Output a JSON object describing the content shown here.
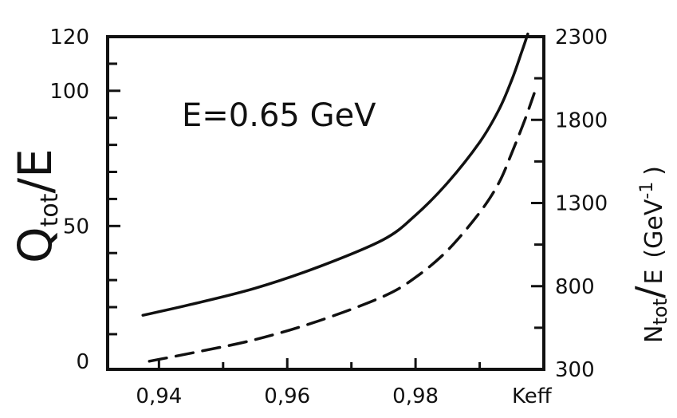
{
  "chart_data": {
    "type": "line",
    "annotation": "E=0.65 GeV",
    "x_axis": {
      "label": "Keff",
      "range": [
        0.932,
        1.0
      ],
      "ticks": [
        {
          "value": 0.94,
          "label": "0,94"
        },
        {
          "value": 0.96,
          "label": "0,96"
        },
        {
          "value": 0.98,
          "label": "0,98"
        }
      ]
    },
    "y_left": {
      "label_main": "Q",
      "label_sub": "tot",
      "label_tail": "/E",
      "range": [
        -3,
        120
      ],
      "ticks": [
        {
          "value": 0,
          "label": "0"
        },
        {
          "value": 50,
          "label": "50"
        },
        {
          "value": 100,
          "label": "100"
        },
        {
          "value": 120,
          "label": "120"
        }
      ]
    },
    "y_right": {
      "label": "Ntot/E (GeV⁻¹)",
      "label_left": "N",
      "label_sub": "tot",
      "label_slash": "/",
      "label_e": "E",
      "label_unit": "(GeV",
      "label_exp": "-1",
      "label_close": ")",
      "range": [
        300,
        2300
      ],
      "ticks": [
        {
          "value": 300,
          "label": "300"
        },
        {
          "value": 800,
          "label": "800"
        },
        {
          "value": 1300,
          "label": "1300"
        },
        {
          "value": 1800,
          "label": "1800"
        },
        {
          "value": 2300,
          "label": "2300"
        }
      ]
    },
    "series": [
      {
        "style": "solid",
        "axis": "left",
        "x": [
          0.9375,
          0.945,
          0.955,
          0.965,
          0.975,
          0.98,
          0.985,
          0.99,
          0.993,
          0.995,
          0.9965,
          0.9975
        ],
        "y": [
          17,
          21,
          27,
          35,
          45,
          54,
          66,
          81,
          93,
          104,
          114,
          121
        ]
      },
      {
        "style": "dashed",
        "axis": "left",
        "x": [
          0.9385,
          0.945,
          0.955,
          0.965,
          0.975,
          0.98,
          0.985,
          0.99,
          0.993,
          0.995,
          0.997,
          0.9985
        ],
        "y": [
          0,
          3,
          8,
          15,
          24,
          31,
          41,
          55,
          66,
          77,
          89,
          99
        ]
      }
    ]
  }
}
